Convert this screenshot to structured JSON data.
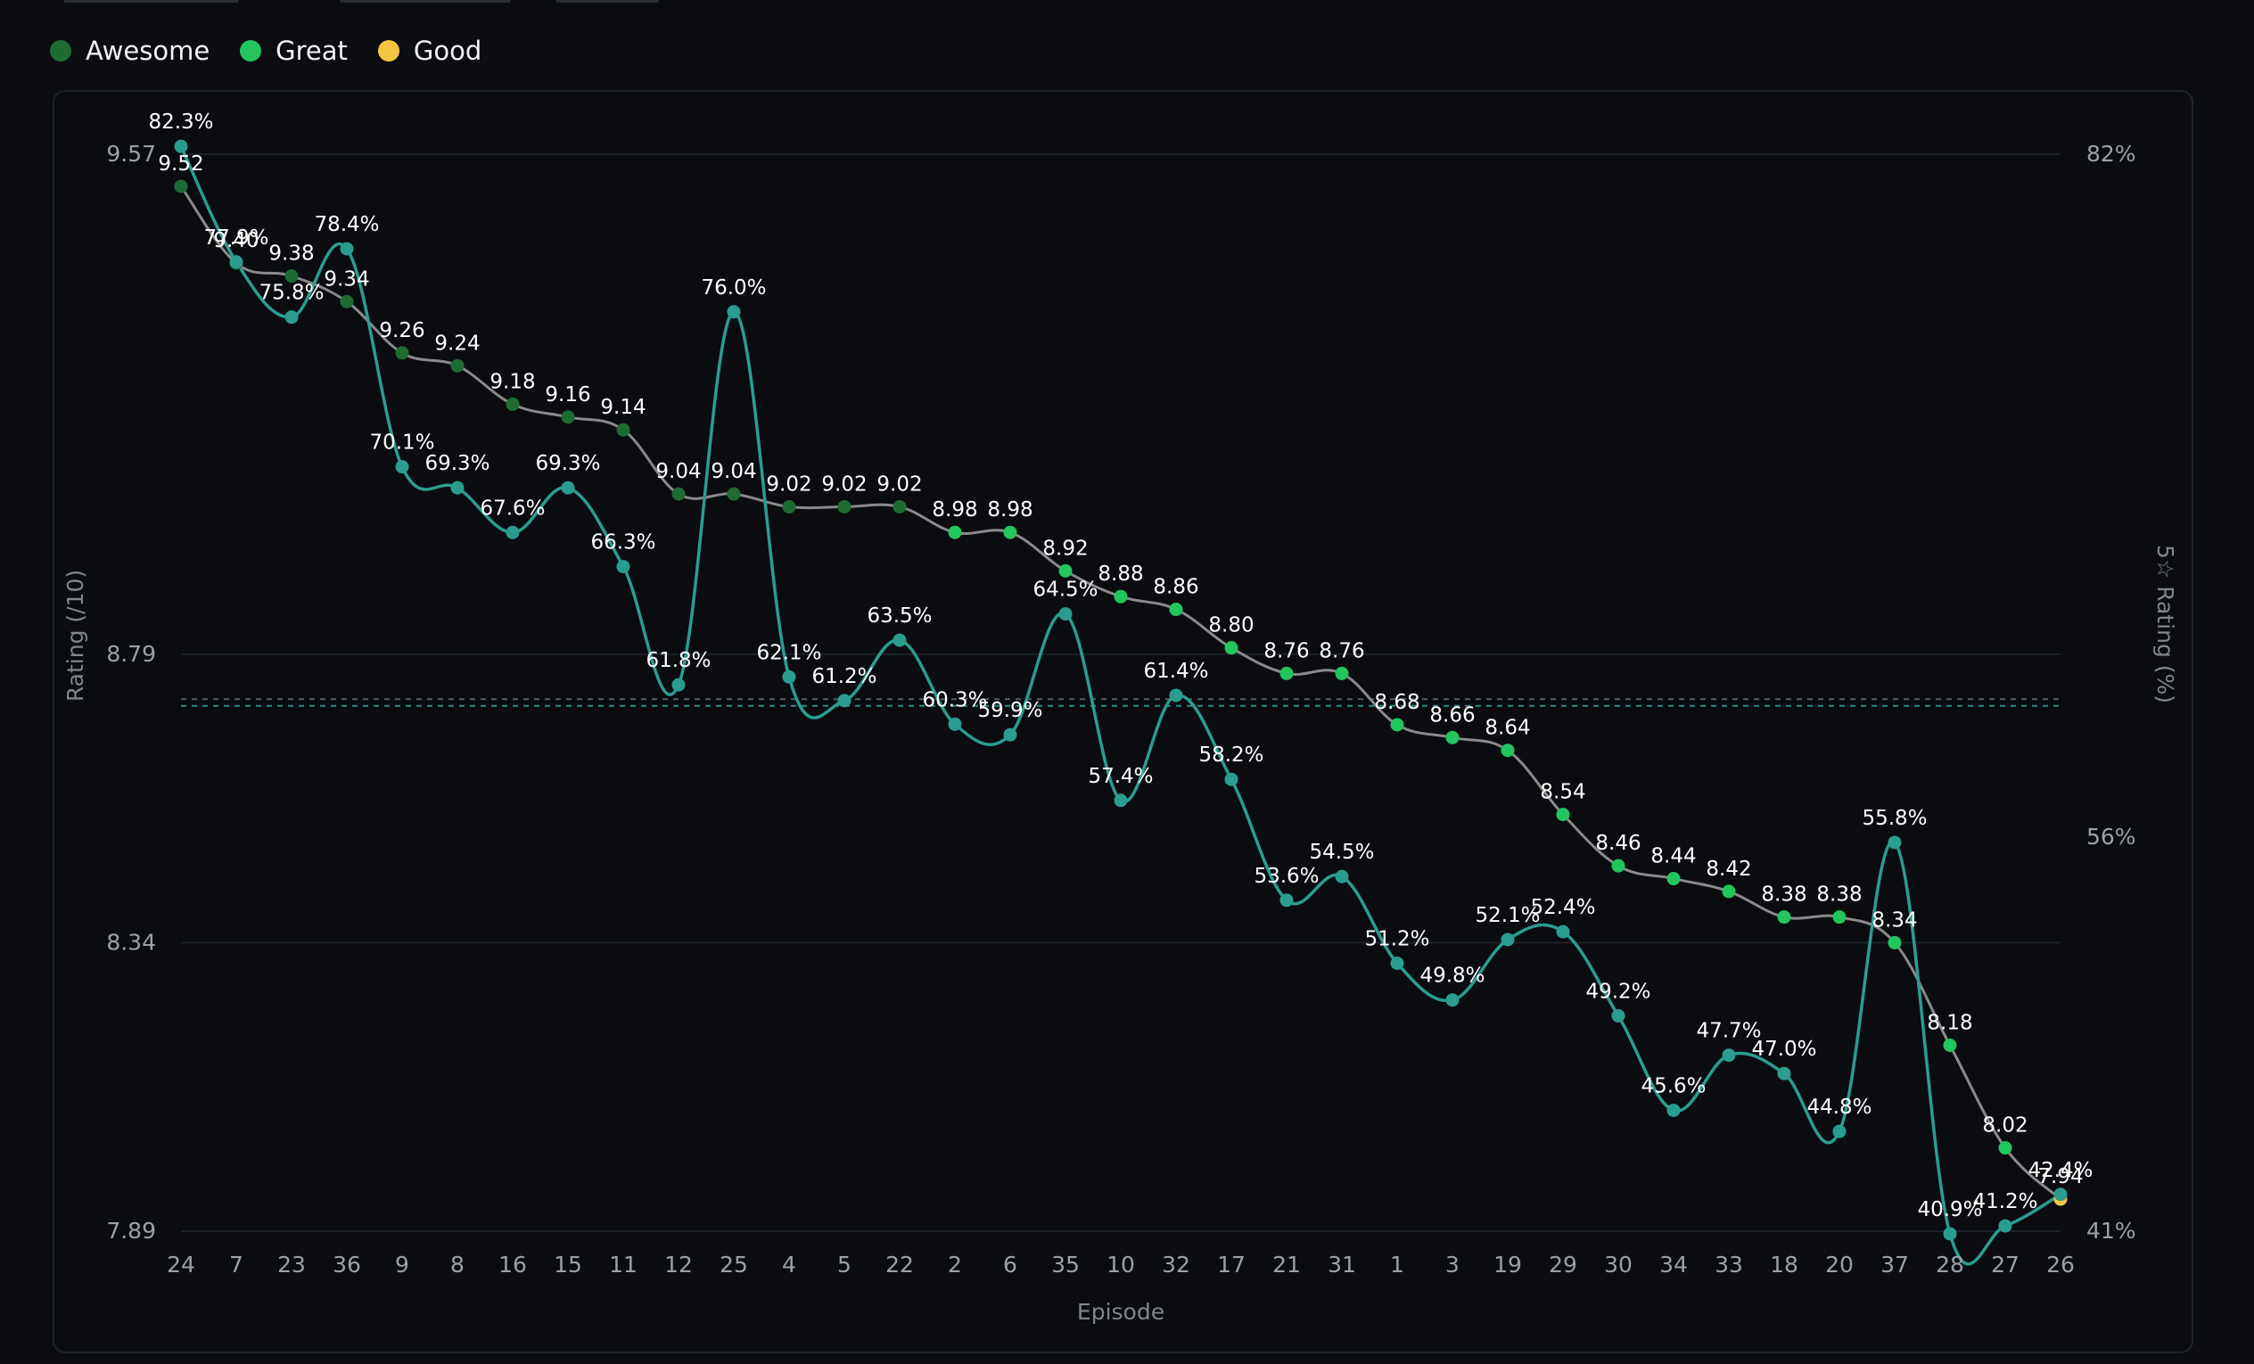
{
  "legend": {
    "items": [
      {
        "label": "Awesome",
        "color": "#1f6b34"
      },
      {
        "label": "Great",
        "color": "#22c55e"
      },
      {
        "label": "Good",
        "color": "#f5c542"
      }
    ]
  },
  "chart_data": {
    "type": "line",
    "xlabel": "Episode",
    "ylabel": "Rating (/10)",
    "y2label": "5☆ Rating (%)",
    "categories": [
      "24",
      "7",
      "23",
      "36",
      "9",
      "8",
      "16",
      "15",
      "11",
      "12",
      "25",
      "4",
      "5",
      "22",
      "2",
      "6",
      "35",
      "10",
      "32",
      "17",
      "21",
      "31",
      "1",
      "3",
      "19",
      "29",
      "30",
      "34",
      "33",
      "18",
      "20",
      "37",
      "28",
      "27",
      "26"
    ],
    "ylim": [
      7.89,
      9.57
    ],
    "yticks": [
      "9.57",
      "8.79",
      "8.34",
      "7.89"
    ],
    "y2lim": [
      41,
      82
    ],
    "y2ticks": [
      "82%",
      "56%",
      "41%"
    ],
    "series": [
      {
        "name": "Rating",
        "values": [
          9.52,
          9.4,
          9.38,
          9.34,
          9.26,
          9.24,
          9.18,
          9.16,
          9.14,
          9.04,
          9.04,
          9.02,
          9.02,
          9.02,
          8.98,
          8.98,
          8.92,
          8.88,
          8.86,
          8.8,
          8.76,
          8.76,
          8.68,
          8.66,
          8.64,
          8.54,
          8.46,
          8.44,
          8.42,
          8.38,
          8.38,
          8.34,
          8.18,
          8.02,
          7.94
        ],
        "labels": [
          "9.52",
          "9.40",
          "9.38",
          "9.34",
          "9.26",
          "9.24",
          "9.18",
          "9.16",
          "9.14",
          "9.04",
          "9.04",
          "9.02",
          "9.02",
          "9.02",
          "8.98",
          "8.98",
          "8.92",
          "8.88",
          "8.86",
          "8.80",
          "8.76",
          "8.76",
          "8.68",
          "8.66",
          "8.64",
          "8.54",
          "8.46",
          "8.44",
          "8.42",
          "8.38",
          "8.38",
          "8.34",
          "8.18",
          "8.02",
          "7.94"
        ],
        "tiers": [
          "Awesome",
          "Awesome",
          "Awesome",
          "Awesome",
          "Awesome",
          "Awesome",
          "Awesome",
          "Awesome",
          "Awesome",
          "Awesome",
          "Awesome",
          "Awesome",
          "Awesome",
          "Awesome",
          "Great",
          "Great",
          "Great",
          "Great",
          "Great",
          "Great",
          "Great",
          "Great",
          "Great",
          "Great",
          "Great",
          "Great",
          "Great",
          "Great",
          "Great",
          "Great",
          "Great",
          "Great",
          "Great",
          "Great",
          "Good"
        ],
        "line_color": "#8a8a8a"
      },
      {
        "name": "5☆ Rating",
        "values": [
          82.3,
          77.9,
          75.8,
          78.4,
          70.1,
          69.3,
          67.6,
          69.3,
          66.3,
          61.8,
          76.0,
          62.1,
          61.2,
          63.5,
          60.3,
          59.9,
          64.5,
          57.4,
          61.4,
          58.2,
          53.6,
          54.5,
          51.2,
          49.8,
          52.1,
          52.4,
          49.2,
          45.6,
          47.7,
          47.0,
          44.8,
          55.8,
          40.9,
          41.2,
          42.4
        ],
        "labels": [
          "82.3%",
          "77.9%",
          "75.8%",
          "78.4%",
          "70.1%",
          "69.3%",
          "67.6%",
          "69.3%",
          "66.3%",
          "61.8%",
          "76.0%",
          "62.1%",
          "61.2%",
          "63.5%",
          "60.3%",
          "59.9%",
          "64.5%",
          "57.4%",
          "61.4%",
          "58.2%",
          "53.6%",
          "54.5%",
          "51.2%",
          "49.8%",
          "52.1%",
          "52.4%",
          "49.2%",
          "45.6%",
          "47.7%",
          "47.0%",
          "44.8%",
          "55.8%",
          "40.9%",
          "41.2%",
          "42.4%"
        ],
        "color": "#2a9d8f",
        "axis": "right"
      }
    ],
    "reference_lines": [
      {
        "axis": "left",
        "value": 8.72,
        "color": "#5c6a66"
      },
      {
        "axis": "right",
        "value": 61.0,
        "color": "#2a9d8f"
      }
    ],
    "grid": true,
    "legend_position": "top-left"
  }
}
